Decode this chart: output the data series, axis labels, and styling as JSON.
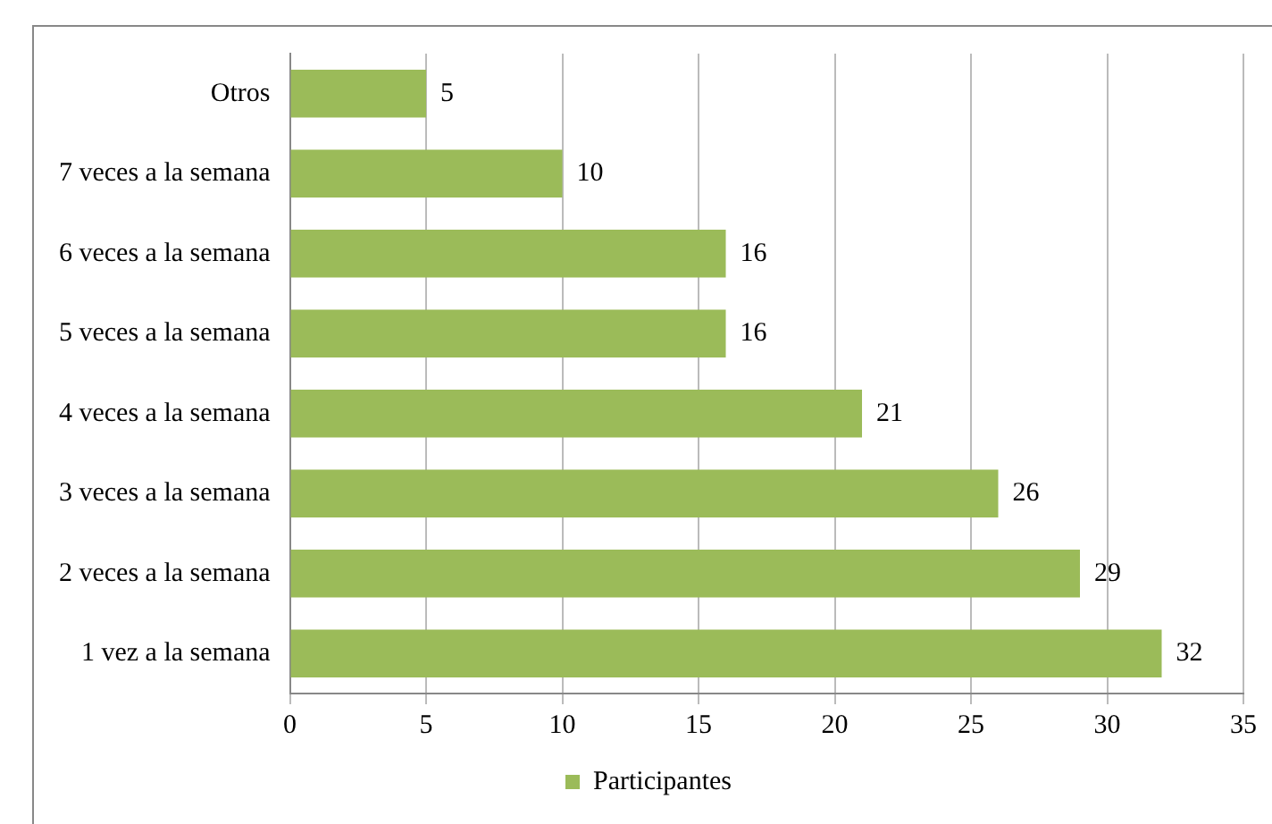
{
  "chart_data": {
    "type": "bar",
    "orientation": "horizontal",
    "categories": [
      "Otros",
      "7 veces a la semana",
      "6 veces a la semana",
      "5 veces a la semana",
      "4 veces a la semana",
      "3 veces a la semana",
      "2 veces a la semana",
      "1 vez a la semana"
    ],
    "series": [
      {
        "name": "Participantes",
        "color": "#9bbb59",
        "values": [
          5,
          10,
          16,
          16,
          21,
          26,
          29,
          32
        ]
      }
    ],
    "xlim": [
      0,
      35
    ],
    "xticks": [
      0,
      5,
      10,
      15,
      20,
      25,
      30,
      35
    ],
    "grid": "x",
    "legend": "bottom",
    "data_labels": true
  }
}
